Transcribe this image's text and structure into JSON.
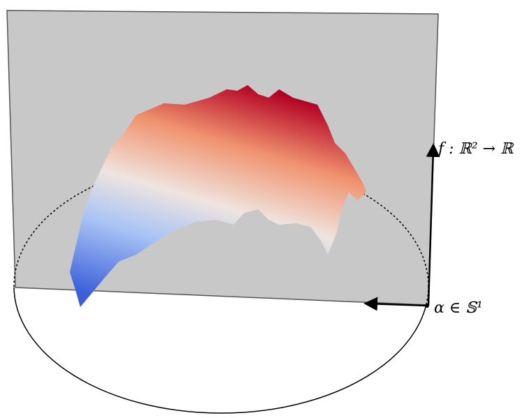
{
  "labels": {
    "function": "f : ℝ² → ℝ",
    "angle": "α ∈ 𝕊¹"
  }
}
